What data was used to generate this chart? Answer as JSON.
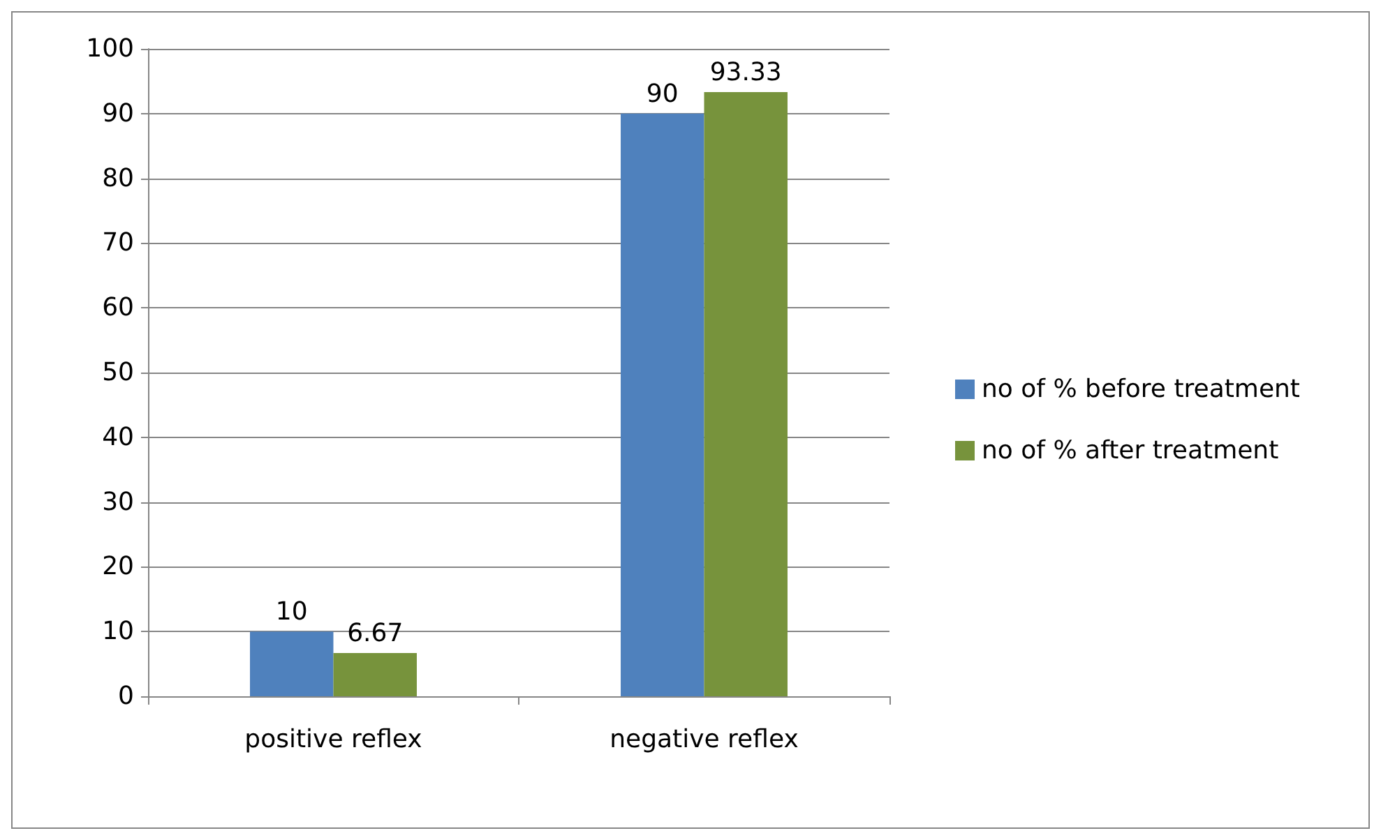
{
  "chart_data": {
    "type": "bar",
    "categories": [
      "positive reflex",
      "negative reflex"
    ],
    "series": [
      {
        "name": "no of % before treatment",
        "color": "#4f81bd",
        "values": [
          10,
          90
        ]
      },
      {
        "name": "no of % after treatment",
        "color": "#77933c",
        "values": [
          6.67,
          93.33
        ]
      }
    ],
    "ylim": [
      0,
      100
    ],
    "yticks": [
      0,
      10,
      20,
      30,
      40,
      50,
      60,
      70,
      80,
      90,
      100
    ],
    "grid": "y",
    "legend": "right",
    "data_labels": true
  }
}
